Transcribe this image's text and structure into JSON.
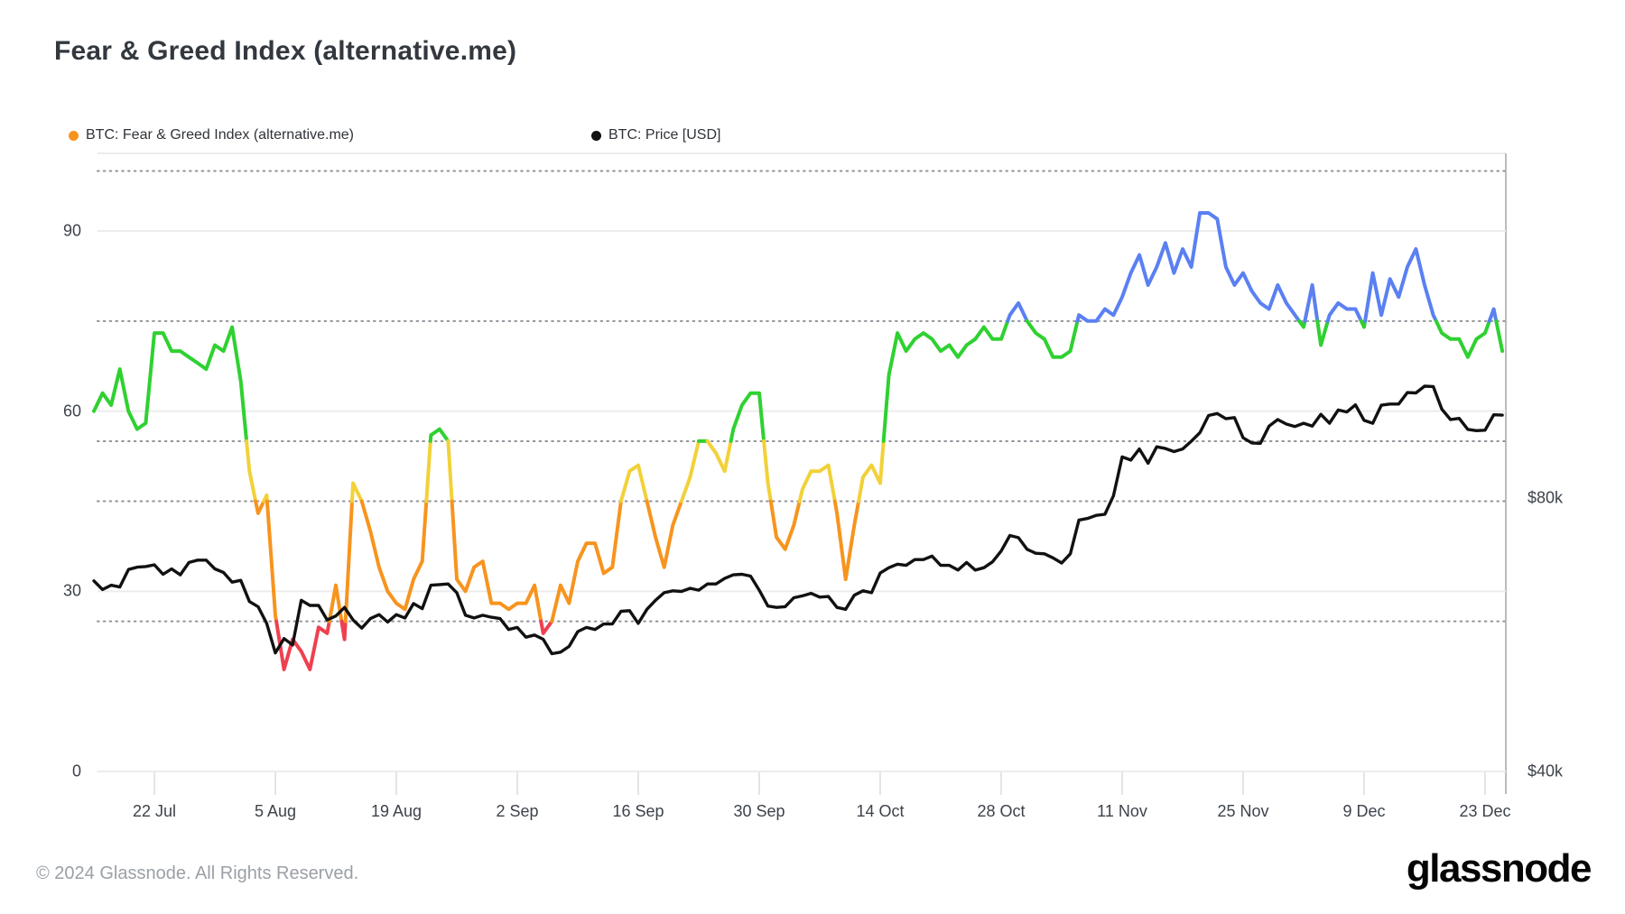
{
  "title": "Fear & Greed Index (alternative.me)",
  "legend": [
    {
      "label": "BTC: Fear & Greed Index (alternative.me)",
      "color": "#f7941e"
    },
    {
      "label": "BTC: Price [USD]",
      "color": "#111111"
    }
  ],
  "footer": {
    "copyright": "© 2024 Glassnode. All Rights Reserved.",
    "brand": "glassnode"
  },
  "axes": {
    "left_ticks": [
      {
        "label": "90",
        "value": 90
      },
      {
        "label": "60",
        "value": 60
      },
      {
        "label": "30",
        "value": 30
      },
      {
        "label": "0",
        "value": 0
      }
    ],
    "right_ticks": [
      {
        "label": "$80k",
        "value": 80000
      },
      {
        "label": "$40k",
        "value": 40000
      }
    ],
    "dotted_levels": [
      100,
      75,
      55,
      45,
      25
    ],
    "x_ticks": [
      "22 Jul",
      "5 Aug",
      "19 Aug",
      "2 Sep",
      "16 Sep",
      "30 Sep",
      "14 Oct",
      "28 Oct",
      "11 Nov",
      "25 Nov",
      "9 Dec",
      "23 Dec"
    ]
  },
  "chart_data": {
    "type": "line",
    "title": "Fear & Greed Index (alternative.me)",
    "start_date": "15 Jul 2024",
    "end_date": "25 Dec 2024",
    "frequency": "daily",
    "left_axis": {
      "label": "Fear & Greed Index",
      "range": [
        0,
        103
      ],
      "solid_gridlines": [
        0,
        30,
        60,
        90
      ],
      "dotted_gridlines": [
        25,
        45,
        55,
        75,
        100
      ]
    },
    "right_axis": {
      "label": "BTC Price USD",
      "scale": "log2",
      "labeled_levels": [
        40000,
        80000
      ]
    },
    "legend_position": "top-left",
    "fg_zones": [
      {
        "upto": 25,
        "name": "extreme-fear",
        "color": "#ef4050"
      },
      {
        "upto": 45,
        "name": "fear",
        "color": "#f7941e"
      },
      {
        "upto": 55,
        "name": "neutral",
        "color": "#f2d139"
      },
      {
        "upto": 75,
        "name": "greed",
        "color": "#2fd131"
      },
      {
        "upto": 101,
        "name": "extreme-greed",
        "color": "#5a80f2"
      }
    ],
    "series": [
      {
        "name": "BTC: Fear & Greed Index (alternative.me)",
        "axis": "left",
        "style": "multicolor-by-zone",
        "values": [
          60,
          63,
          61,
          67,
          60,
          57,
          58,
          73,
          73,
          70,
          70,
          69,
          68,
          67,
          71,
          70,
          74,
          65,
          50,
          43,
          46,
          26,
          17,
          22,
          20,
          17,
          24,
          23,
          31,
          22,
          48,
          45,
          40,
          34,
          30,
          28,
          27,
          32,
          35,
          56,
          57,
          55,
          32,
          30,
          34,
          35,
          28,
          28,
          27,
          28,
          28,
          31,
          23,
          25,
          31,
          28,
          35,
          38,
          38,
          33,
          34,
          45,
          50,
          51,
          45,
          39,
          34,
          41,
          45,
          49,
          55,
          55,
          53,
          50,
          57,
          61,
          63,
          63,
          48,
          39,
          37,
          41,
          47,
          50,
          50,
          51,
          43,
          32,
          41,
          49,
          51,
          48,
          66,
          73,
          70,
          72,
          73,
          72,
          70,
          71,
          69,
          71,
          72,
          74,
          72,
          72,
          76,
          78,
          75,
          73,
          72,
          69,
          69,
          70,
          76,
          75,
          75,
          77,
          76,
          79,
          83,
          86,
          81,
          84,
          88,
          83,
          87,
          84,
          93,
          93,
          92,
          84,
          81,
          83,
          80,
          78,
          77,
          81,
          78,
          76,
          74,
          81,
          71,
          76,
          78,
          77,
          77,
          74,
          83,
          76,
          82,
          79,
          84,
          87,
          81,
          76,
          73,
          72,
          72,
          69,
          72,
          73,
          77,
          70
        ]
      },
      {
        "name": "BTC: Price [USD]",
        "axis": "right",
        "color": "#111111",
        "unit": "USD",
        "values": [
          64800,
          63400,
          64100,
          63800,
          66700,
          67100,
          67200,
          67500,
          65900,
          66800,
          65800,
          67900,
          68300,
          68300,
          66800,
          66200,
          64600,
          64900,
          61500,
          60700,
          58200,
          54000,
          56000,
          55100,
          61700,
          60900,
          60900,
          58700,
          59300,
          60600,
          58700,
          57500,
          58900,
          59500,
          58400,
          59500,
          59000,
          61200,
          60400,
          64100,
          64200,
          64300,
          62900,
          59400,
          59000,
          59400,
          59100,
          58900,
          57300,
          57600,
          56200,
          56500,
          55900,
          53900,
          54100,
          54900,
          57000,
          57600,
          57300,
          58100,
          58100,
          60000,
          60100,
          58200,
          60300,
          61700,
          62900,
          63200,
          63100,
          63600,
          63300,
          64300,
          64300,
          65200,
          65800,
          65900,
          65600,
          63300,
          60800,
          60600,
          60700,
          62100,
          62400,
          62800,
          62200,
          62300,
          60600,
          60300,
          62500,
          63200,
          62900,
          66100,
          67000,
          67600,
          67400,
          68400,
          68400,
          69000,
          67400,
          67400,
          66600,
          67900,
          66600,
          67000,
          68000,
          69900,
          72700,
          72300,
          70200,
          69500,
          69400,
          68700,
          67800,
          69400,
          75600,
          75900,
          76500,
          76700,
          80400,
          88700,
          88000,
          90500,
          87300,
          91000,
          90600,
          89900,
          90500,
          92300,
          94300,
          98500,
          99000,
          97700,
          98000,
          93100,
          91900,
          91800,
          95900,
          97500,
          96400,
          95800,
          96600,
          95900,
          98800,
          96600,
          99900,
          99400,
          101200,
          97300,
          96600,
          101100,
          101400,
          101400,
          104400,
          104300,
          106100,
          106000,
          100100,
          97500,
          97800,
          95100,
          94800,
          94900,
          98700,
          98600
        ]
      }
    ]
  }
}
